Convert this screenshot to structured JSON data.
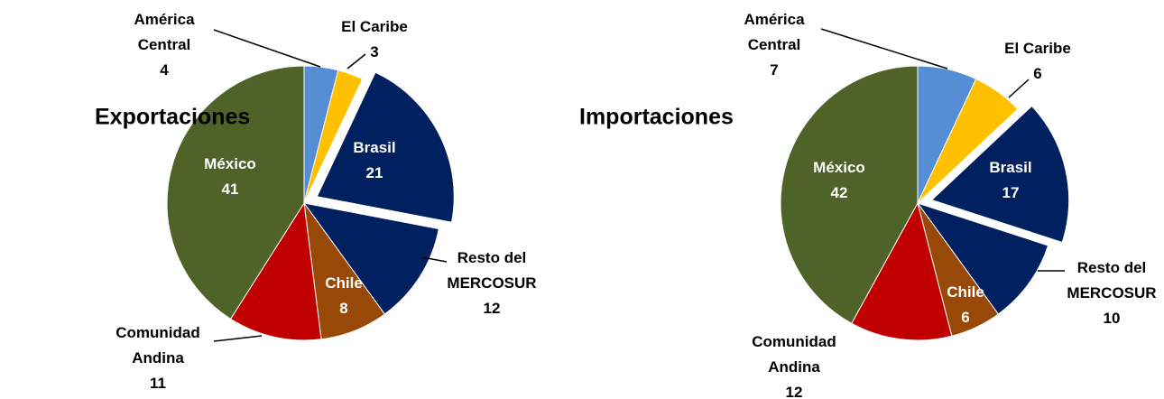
{
  "chart_data": [
    {
      "type": "pie",
      "title": "Exportaciones",
      "categories": [
        "América Central",
        "El Caribe",
        "Brasil",
        "Resto del MERCOSUR",
        "Chile",
        "Comunidad Andina",
        "México"
      ],
      "values": [
        4,
        3,
        21,
        12,
        8,
        11,
        41
      ],
      "colors": [
        "#558ED5",
        "#FFC000",
        "#002060",
        "#002060",
        "#984807",
        "#C00000",
        "#4F6228"
      ],
      "exploded": "Brasil"
    },
    {
      "type": "pie",
      "title": "Importaciones",
      "categories": [
        "América Central",
        "El Caribe",
        "Brasil",
        "Resto del MERCOSUR",
        "Chile",
        "Comunidad Andina",
        "México"
      ],
      "values": [
        7,
        6,
        17,
        10,
        6,
        12,
        42
      ],
      "colors": [
        "#558ED5",
        "#FFC000",
        "#002060",
        "#002060",
        "#984807",
        "#C00000",
        "#4F6228"
      ],
      "exploded": "Brasil"
    }
  ]
}
